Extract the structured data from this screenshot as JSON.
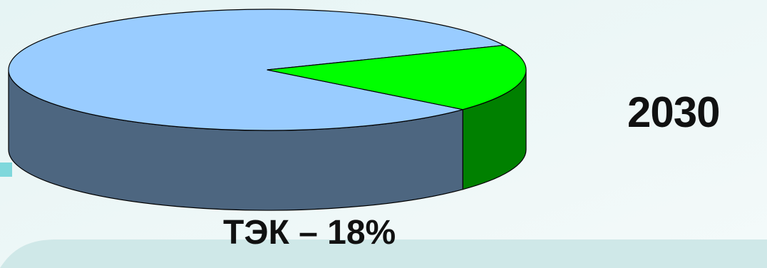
{
  "chart_data": {
    "type": "pie",
    "title": "2030",
    "slices": [
      {
        "name": "",
        "value": 82,
        "top_color": "#99ccff",
        "side_color": "#4d6680"
      },
      {
        "name": "ТЭК – 18%",
        "value": 18,
        "top_color": "#00ff00",
        "side_color": "#008000"
      }
    ],
    "style": "3d-tilted",
    "legend": "none"
  },
  "colors": {
    "background": "#e9f4f4",
    "accent_cyan": "#7fd8dc",
    "outline": "#000000"
  }
}
